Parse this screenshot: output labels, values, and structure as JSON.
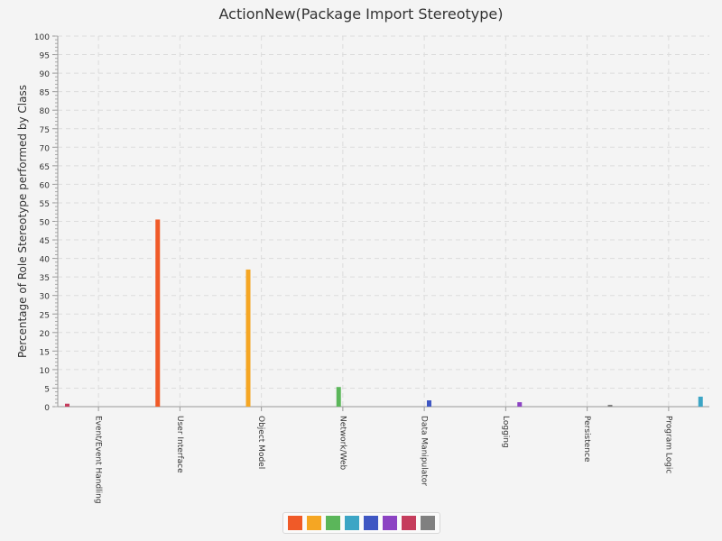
{
  "chart_data": {
    "type": "bar",
    "title": "ActionNew(Package Import Stereotype)",
    "xlabel": "",
    "ylabel": "Percentage of Role Stereotype performed by Class",
    "ylim": [
      0,
      100
    ],
    "ytick_step": 5,
    "grid": true,
    "legend": "bottom-center",
    "categories": [
      "Event/Event Handling",
      "User Interface",
      "Object Model",
      "Network/Web",
      "Data Manipulator",
      "Logging",
      "Persistence",
      "Program Logic"
    ],
    "series": [
      {
        "values": [
          0.8,
          0,
          0,
          0,
          0,
          0,
          0,
          0
        ],
        "color": "#c53d5d"
      },
      {
        "values": [
          0,
          50.5,
          0,
          0,
          0,
          0,
          0,
          0
        ],
        "color": "#f05a28"
      },
      {
        "values": [
          0,
          0,
          37,
          0,
          0,
          0,
          0,
          0
        ],
        "color": "#f5a623"
      },
      {
        "values": [
          0,
          0,
          0,
          5.3,
          0,
          0,
          0,
          0
        ],
        "color": "#5bb65a"
      },
      {
        "values": [
          0,
          0,
          0,
          0,
          1.7,
          0,
          0,
          0
        ],
        "color": "#3f57c3"
      },
      {
        "values": [
          0,
          0,
          0,
          0,
          0,
          1.2,
          0,
          0
        ],
        "color": "#8c43c3"
      },
      {
        "values": [
          0,
          0,
          0,
          0,
          0,
          0,
          0.5,
          0
        ],
        "color": "#808080"
      },
      {
        "values": [
          0,
          0,
          0,
          0,
          0,
          0,
          0,
          2.7
        ],
        "color": "#3ca5c5"
      }
    ],
    "legend_colors": [
      "#f05a28",
      "#f5a623",
      "#5bb65a",
      "#3ca5c5",
      "#3f57c3",
      "#8c43c3",
      "#c53d5d",
      "#808080"
    ]
  }
}
